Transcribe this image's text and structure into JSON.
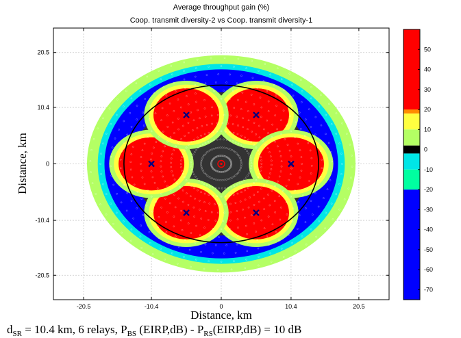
{
  "chart_data": {
    "type": "heatmap",
    "title": "Average throughput gain  (%)",
    "subtitle": "Coop. transmit diversity-2 vs Coop. transmit diversity-1",
    "xlabel": "Distance, km",
    "ylabel": "Distance, km",
    "caption_parts": {
      "d": "d",
      "d_sub": "SR",
      "text1": " = 10.4 km, 6 relays, P",
      "p1_sub": "BS",
      "text2": " (EIRP,dB) - P",
      "p2_sub": "RS",
      "text3": "(EIRP,dB) = 10 dB"
    },
    "xlim": [
      -25,
      25
    ],
    "ylim": [
      -25,
      25
    ],
    "xticks": [
      -20.5,
      -10.4,
      0,
      10.4,
      20.5
    ],
    "xtick_labels": [
      "-20.5",
      "-10.4",
      "0",
      "10.4",
      "20.5"
    ],
    "yticks": [
      20.5,
      10.4,
      0,
      -10.4,
      -20.5
    ],
    "ytick_labels": [
      "20.5",
      "10.4",
      "0",
      "-10.4",
      "-20.5"
    ],
    "grid": true,
    "base_station": {
      "x": 0,
      "y": 0
    },
    "relays": [
      {
        "x": 5.2,
        "y": 9.0
      },
      {
        "x": 10.4,
        "y": 0
      },
      {
        "x": 5.2,
        "y": -9.0
      },
      {
        "x": -5.2,
        "y": -9.0
      },
      {
        "x": -10.4,
        "y": 0
      },
      {
        "x": -5.2,
        "y": 9.0
      }
    ],
    "cell_radius_km": 14.5,
    "coverage_radius_km": 20,
    "colorbar": {
      "min": -75,
      "max": 60,
      "ticks": [
        50,
        40,
        30,
        20,
        10,
        0,
        -10,
        -20,
        -30,
        -40,
        -50,
        -60,
        -70
      ],
      "tick_labels": [
        "50",
        "40",
        "30",
        "20",
        "10",
        "0",
        "-10",
        "-20",
        "-30",
        "-40",
        "-50",
        "-60",
        "-70"
      ],
      "bands": [
        {
          "from": 20,
          "to": 60,
          "color": "#ff0000"
        },
        {
          "from": 18,
          "to": 20,
          "color": "#ff8c00"
        },
        {
          "from": 10,
          "to": 18,
          "color": "#ffff40"
        },
        {
          "from": 2,
          "to": 10,
          "color": "#b4ff64"
        },
        {
          "from": -2,
          "to": 2,
          "color": "#000000"
        },
        {
          "from": -10,
          "to": -2,
          "color": "#00e6e6"
        },
        {
          "from": -20,
          "to": -10,
          "color": "#00ffa0"
        },
        {
          "from": -75,
          "to": -20,
          "color": "#0000ff"
        }
      ]
    },
    "colors": {
      "gain_high": "#ff0000",
      "gain_mid": "#ffff40",
      "gain_low": "#b4ff64",
      "neutral": "#000000",
      "loss_small": "#00e6e6",
      "loss_large": "#0000ff",
      "relay_marker": "#000080",
      "base_station_marker": "#ff0000"
    }
  }
}
